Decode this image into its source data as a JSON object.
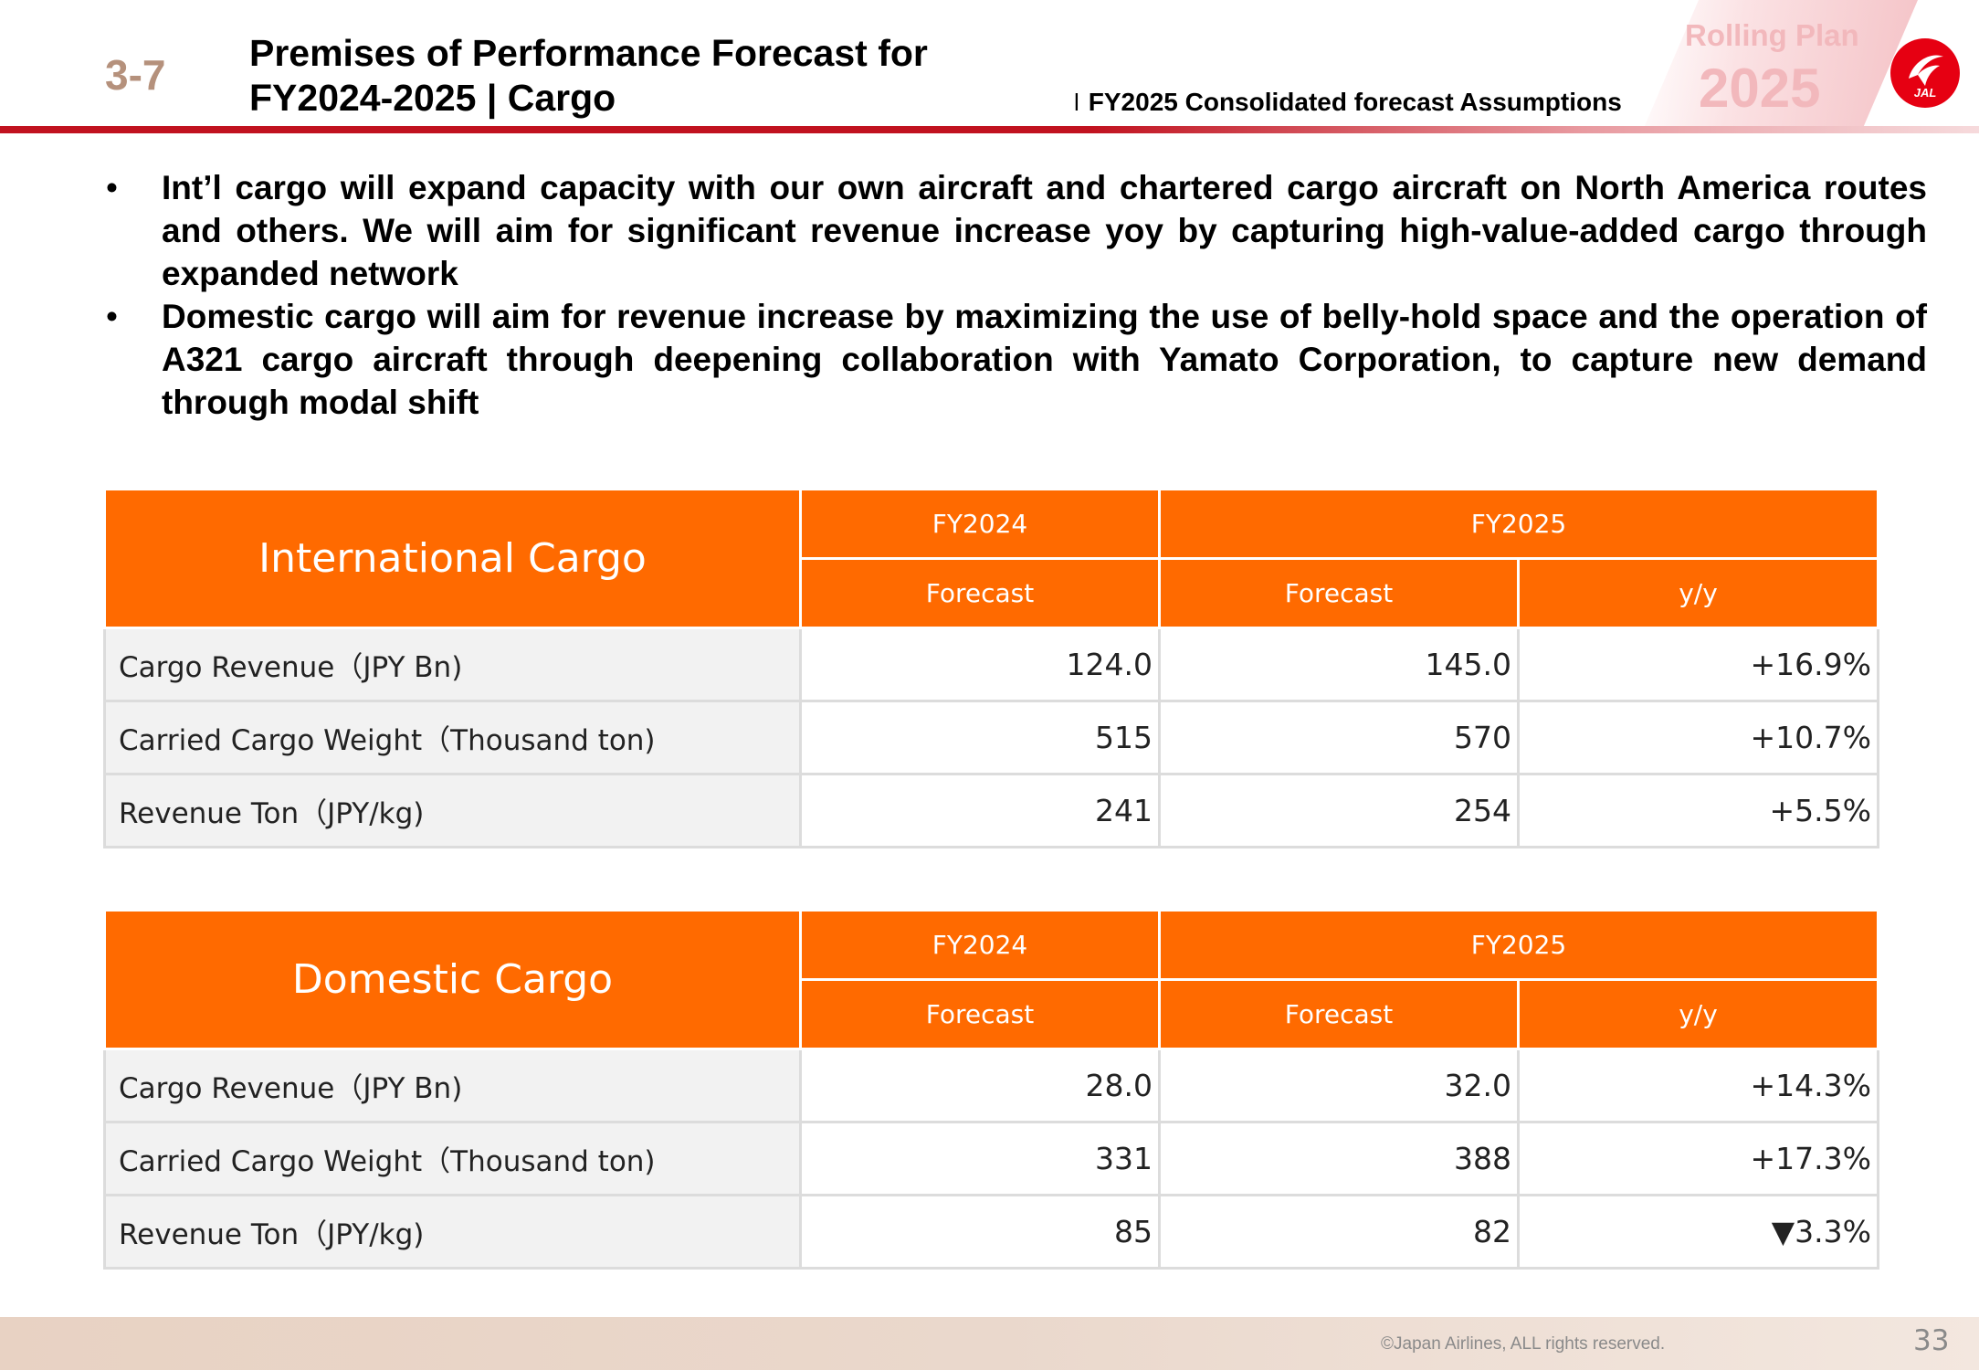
{
  "header": {
    "section_number": "3-7",
    "title_line1": "Premises of Performance Forecast for",
    "title_line2": "FY2024-2025 | Cargo",
    "subtitle_pipe": "l",
    "subtitle": "FY2025 Consolidated forecast Assumptions",
    "badge_line1": "Rolling Plan",
    "badge_line2": "2025",
    "logo_text": "JAL"
  },
  "bullets": [
    {
      "symbol": "•",
      "text": "Int’l cargo will expand capacity with our own aircraft and chartered cargo aircraft on North America routes and others. We will aim for significant revenue increase yoy by capturing high-value-added cargo through expanded network"
    },
    {
      "symbol": "•",
      "text": "Domestic cargo will aim for revenue increase by maximizing the use of belly-hold space and the operation of A321 cargo aircraft through deepening collaboration with Yamato Corporation, to capture new demand through modal shift"
    }
  ],
  "tables": [
    {
      "title": "International Cargo",
      "fy2024": "FY2024",
      "fy2025": "FY2025",
      "sub_forecast_2024": "Forecast",
      "sub_forecast_2025": "Forecast",
      "sub_yy": "y/y",
      "rows": [
        {
          "label": "Cargo Revenue（JPY Bn)",
          "fy2024": "124.0",
          "fy2025": "145.0",
          "yy": "+16.9%"
        },
        {
          "label": "Carried Cargo Weight（Thousand ton)",
          "fy2024": "515",
          "fy2025": "570",
          "yy": "+10.7%"
        },
        {
          "label": "Revenue Ton（JPY/kg)",
          "fy2024": "241",
          "fy2025": "254",
          "yy": "+5.5%"
        }
      ]
    },
    {
      "title": "Domestic Cargo",
      "fy2024": "FY2024",
      "fy2025": "FY2025",
      "sub_forecast_2024": "Forecast",
      "sub_forecast_2025": "Forecast",
      "sub_yy": "y/y",
      "rows": [
        {
          "label": "Cargo Revenue（JPY Bn)",
          "fy2024": "28.0",
          "fy2025": "32.0",
          "yy": "+14.3%"
        },
        {
          "label": "Carried Cargo Weight（Thousand ton)",
          "fy2024": "331",
          "fy2025": "388",
          "yy": "+17.3%"
        },
        {
          "label": "Revenue Ton（JPY/kg)",
          "fy2024": "85",
          "fy2025": "82",
          "yy": "▼3.3%"
        }
      ]
    }
  ],
  "footer": {
    "copyright": "©Japan Airlines, ALL rights reserved.",
    "page_number": "33"
  },
  "colors": {
    "accent_orange": "#ff6a00",
    "brand_red": "#c1121f",
    "section_number": "#b5917c"
  }
}
